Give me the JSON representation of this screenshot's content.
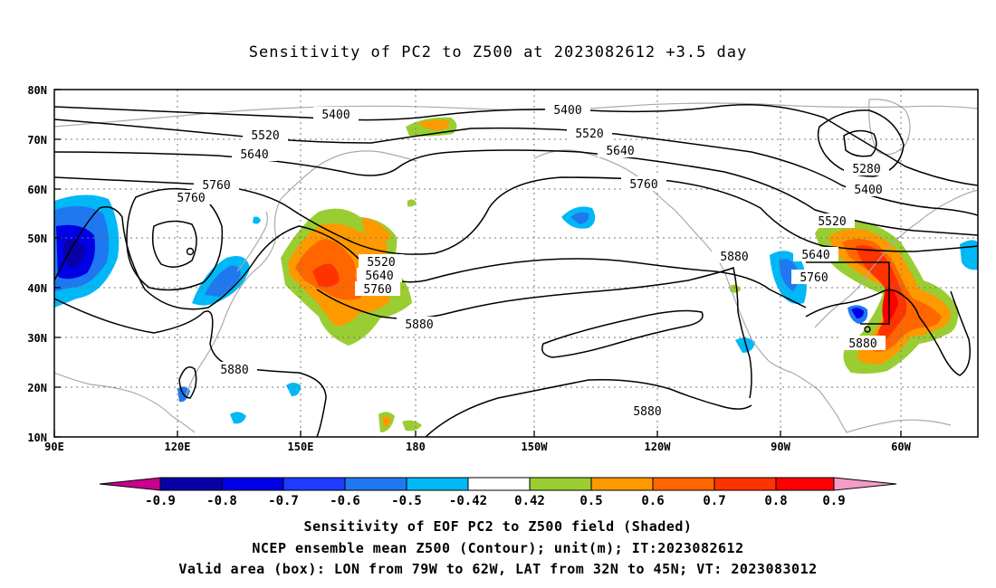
{
  "title": "Sensitivity of PC2 to Z500 at 2023082612 +3.5 day",
  "lat_labels": [
    "80N",
    "70N",
    "60N",
    "50N",
    "40N",
    "30N",
    "20N",
    "10N"
  ],
  "lon_labels": [
    "90E",
    "120E",
    "150E",
    "180",
    "150W",
    "120W",
    "90W",
    "60W"
  ],
  "contour_labels": [
    "5400",
    "5400",
    "5520",
    "5520",
    "5640",
    "5640",
    "5760",
    "5760",
    "5760",
    "5280",
    "5400",
    "5520",
    "5640",
    "5760",
    "5520",
    "5640",
    "5760",
    "5880",
    "5880",
    "5880",
    "5880",
    "5880"
  ],
  "colorbar": {
    "labels": [
      "-0.9",
      "-0.8",
      "-0.7",
      "-0.6",
      "-0.5",
      "-0.42",
      "0.42",
      "0.5",
      "0.6",
      "0.7",
      "0.8",
      "0.9"
    ],
    "colors": [
      "#c8008c",
      "#0a00a8",
      "#0000e6",
      "#1e3cff",
      "#1f78f0",
      "#00b8f5",
      "#ffffff",
      "#9acd32",
      "#ff9900",
      "#ff6600",
      "#ff3300",
      "#ff0000",
      "#f59cc8"
    ]
  },
  "captions": [
    "Sensitivity of EOF PC2 to Z500 field (Shaded)",
    "NCEP ensemble mean Z500 (Contour); unit(m); IT:2023082612",
    "Valid area (box): LON from 79W to 62W, LAT from 32N to 45N; VT: 2023083012"
  ]
}
